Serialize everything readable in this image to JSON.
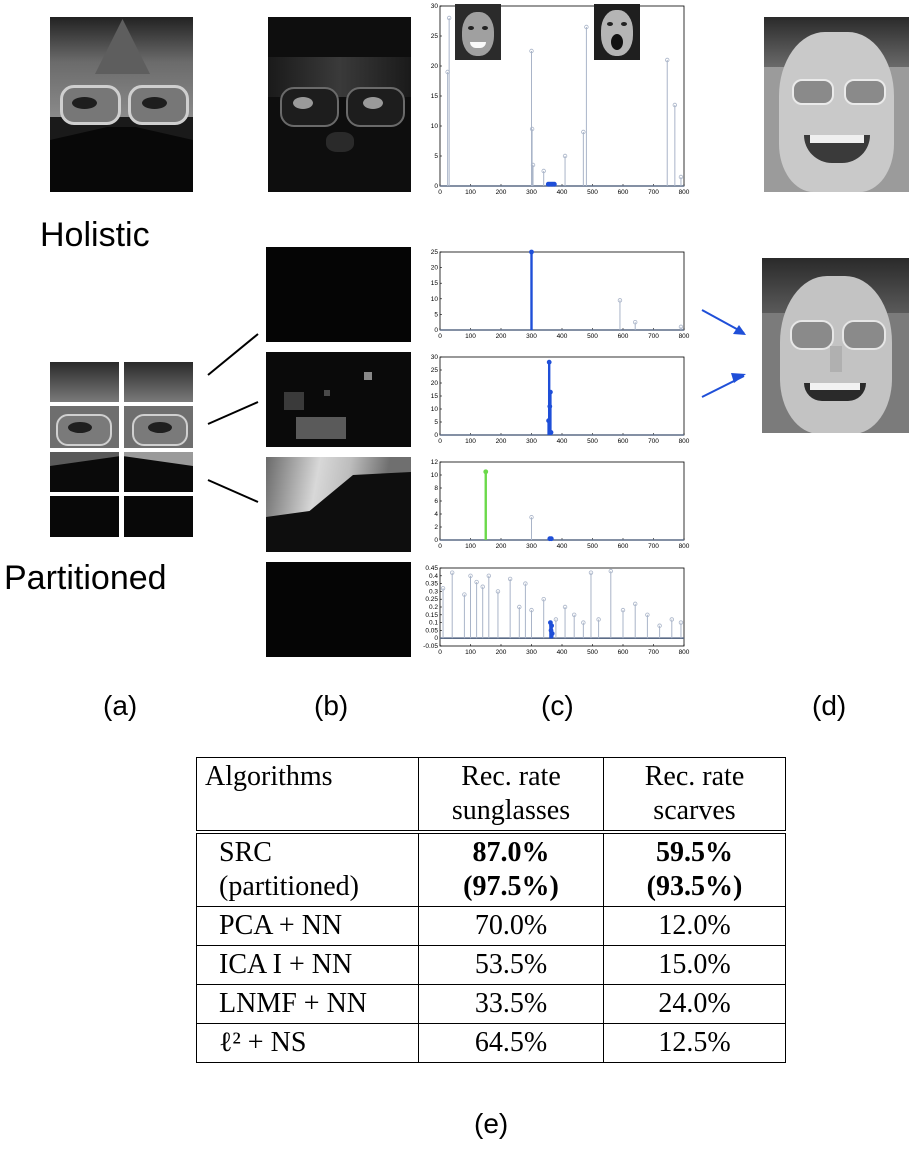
{
  "labels": {
    "holistic": "Holistic",
    "partitioned": "Partitioned",
    "a": "(a)",
    "b": "(b)",
    "c": "(c)",
    "d": "(d)",
    "e": "(e)"
  },
  "images": [
    {
      "name": "scarf-face-holistic",
      "description_icon": "face-with-scarf-image"
    },
    {
      "name": "occlusion-error-holistic",
      "description_icon": "error-image"
    },
    {
      "name": "reconstructed-face-holistic",
      "description_icon": "face-image"
    },
    {
      "name": "reconstructed-face-partitioned",
      "description_icon": "face-image"
    }
  ],
  "chart_data": [
    {
      "type": "stem",
      "panel": "holistic",
      "ylim": [
        0,
        30
      ],
      "yticks": [
        "0",
        "5",
        "10",
        "15",
        "20",
        "25",
        "30"
      ],
      "xlim": [
        0,
        800
      ],
      "xticks": [
        "0",
        "100",
        "200",
        "300",
        "400",
        "500",
        "600",
        "700",
        "800"
      ],
      "series": [
        {
          "color": "#a9b4c8",
          "x": [
            25,
            30,
            300,
            302,
            305,
            340,
            410,
            470,
            480,
            745,
            770,
            790
          ],
          "y": [
            19,
            28,
            22.5,
            9.5,
            3.5,
            2.5,
            5,
            9,
            26.5,
            21,
            13.5,
            1.5
          ]
        },
        {
          "color": "#1f4fd8",
          "x": [
            355,
            360,
            365,
            370,
            375
          ],
          "y": [
            0.3,
            0.3,
            0.3,
            0.3,
            0.3
          ]
        }
      ]
    },
    {
      "type": "stem",
      "panel": "block-1",
      "ylim": [
        0,
        25
      ],
      "yticks": [
        "0",
        "5",
        "10",
        "15",
        "20",
        "25"
      ],
      "xlim": [
        0,
        800
      ],
      "xticks": [
        "0",
        "100",
        "200",
        "300",
        "400",
        "500",
        "600",
        "700",
        "800"
      ],
      "series": [
        {
          "color": "#1f4fd8",
          "x": [
            300
          ],
          "y": [
            25
          ]
        },
        {
          "color": "#a9b4c8",
          "x": [
            590,
            640,
            790
          ],
          "y": [
            9.5,
            2.5,
            1
          ]
        }
      ]
    },
    {
      "type": "stem",
      "panel": "block-2",
      "ylim": [
        0,
        30
      ],
      "yticks": [
        "0",
        "5",
        "10",
        "15",
        "20",
        "25",
        "30"
      ],
      "xlim": [
        0,
        800
      ],
      "xticks": [
        "0",
        "100",
        "200",
        "300",
        "400",
        "500",
        "600",
        "700",
        "800"
      ],
      "series": [
        {
          "color": "#1f4fd8",
          "x": [
            356,
            358,
            360,
            362,
            364
          ],
          "y": [
            5.5,
            28,
            11,
            16.5,
            1
          ]
        }
      ]
    },
    {
      "type": "stem",
      "panel": "block-3",
      "ylim": [
        0,
        12
      ],
      "yticks": [
        "0",
        "2",
        "4",
        "6",
        "8",
        "10",
        "12"
      ],
      "xlim": [
        0,
        800
      ],
      "xticks": [
        "0",
        "100",
        "200",
        "300",
        "400",
        "500",
        "600",
        "700",
        "800"
      ],
      "series": [
        {
          "color": "#6bd94a",
          "x": [
            150
          ],
          "y": [
            10.5
          ]
        },
        {
          "color": "#a9b4c8",
          "x": [
            300
          ],
          "y": [
            3.5
          ]
        },
        {
          "color": "#1f4fd8",
          "x": [
            360,
            365
          ],
          "y": [
            0.2,
            0.2
          ]
        }
      ]
    },
    {
      "type": "stem",
      "panel": "block-4",
      "ylim": [
        -0.05,
        0.45
      ],
      "yticks": [
        "-0.05",
        "0",
        "0.05",
        "0.1",
        "0.15",
        "0.2",
        "0.25",
        "0.3",
        "0.35",
        "0.4",
        "0.45"
      ],
      "xlim": [
        0,
        800
      ],
      "xticks": [
        "0",
        "100",
        "200",
        "300",
        "400",
        "500",
        "600",
        "700",
        "800"
      ],
      "series": [
        {
          "color": "#a9b4c8",
          "x": [
            10,
            40,
            80,
            100,
            120,
            140,
            160,
            190,
            230,
            260,
            280,
            300,
            340,
            380,
            410,
            440,
            470,
            495,
            520,
            560,
            600,
            640,
            680,
            720,
            760,
            790
          ],
          "y": [
            0.32,
            0.42,
            0.28,
            0.4,
            0.36,
            0.33,
            0.4,
            0.3,
            0.38,
            0.2,
            0.35,
            0.18,
            0.25,
            0.12,
            0.2,
            0.15,
            0.1,
            0.42,
            0.12,
            0.43,
            0.18,
            0.22,
            0.15,
            0.08,
            0.12,
            0.1
          ]
        },
        {
          "color": "#1f4fd8",
          "x": [
            362,
            364,
            366,
            368
          ],
          "y": [
            0.1,
            0.05,
            0.08,
            0.03
          ]
        }
      ]
    }
  ],
  "table": {
    "headers": [
      [
        "Algorithms",
        ""
      ],
      [
        "Rec. rate",
        "sunglasses"
      ],
      [
        "Rec. rate",
        "scarves"
      ]
    ],
    "rows": [
      {
        "algo": [
          "SRC",
          "(partitioned)"
        ],
        "sunglasses": [
          "87.0%",
          "(97.5%)"
        ],
        "scarves": [
          "59.5%",
          "(93.5%)"
        ],
        "bold": true
      },
      {
        "algo": [
          "PCA + NN"
        ],
        "sunglasses": [
          "70.0%"
        ],
        "scarves": [
          "12.0%"
        ]
      },
      {
        "algo": [
          "ICA I + NN"
        ],
        "sunglasses": [
          "53.5%"
        ],
        "scarves": [
          "15.0%"
        ]
      },
      {
        "algo": [
          "LNMF + NN"
        ],
        "sunglasses": [
          "33.5%"
        ],
        "scarves": [
          "24.0%"
        ]
      },
      {
        "algo": [
          "ℓ² + NS"
        ],
        "sunglasses": [
          "64.5%"
        ],
        "scarves": [
          "12.5%"
        ]
      }
    ]
  }
}
